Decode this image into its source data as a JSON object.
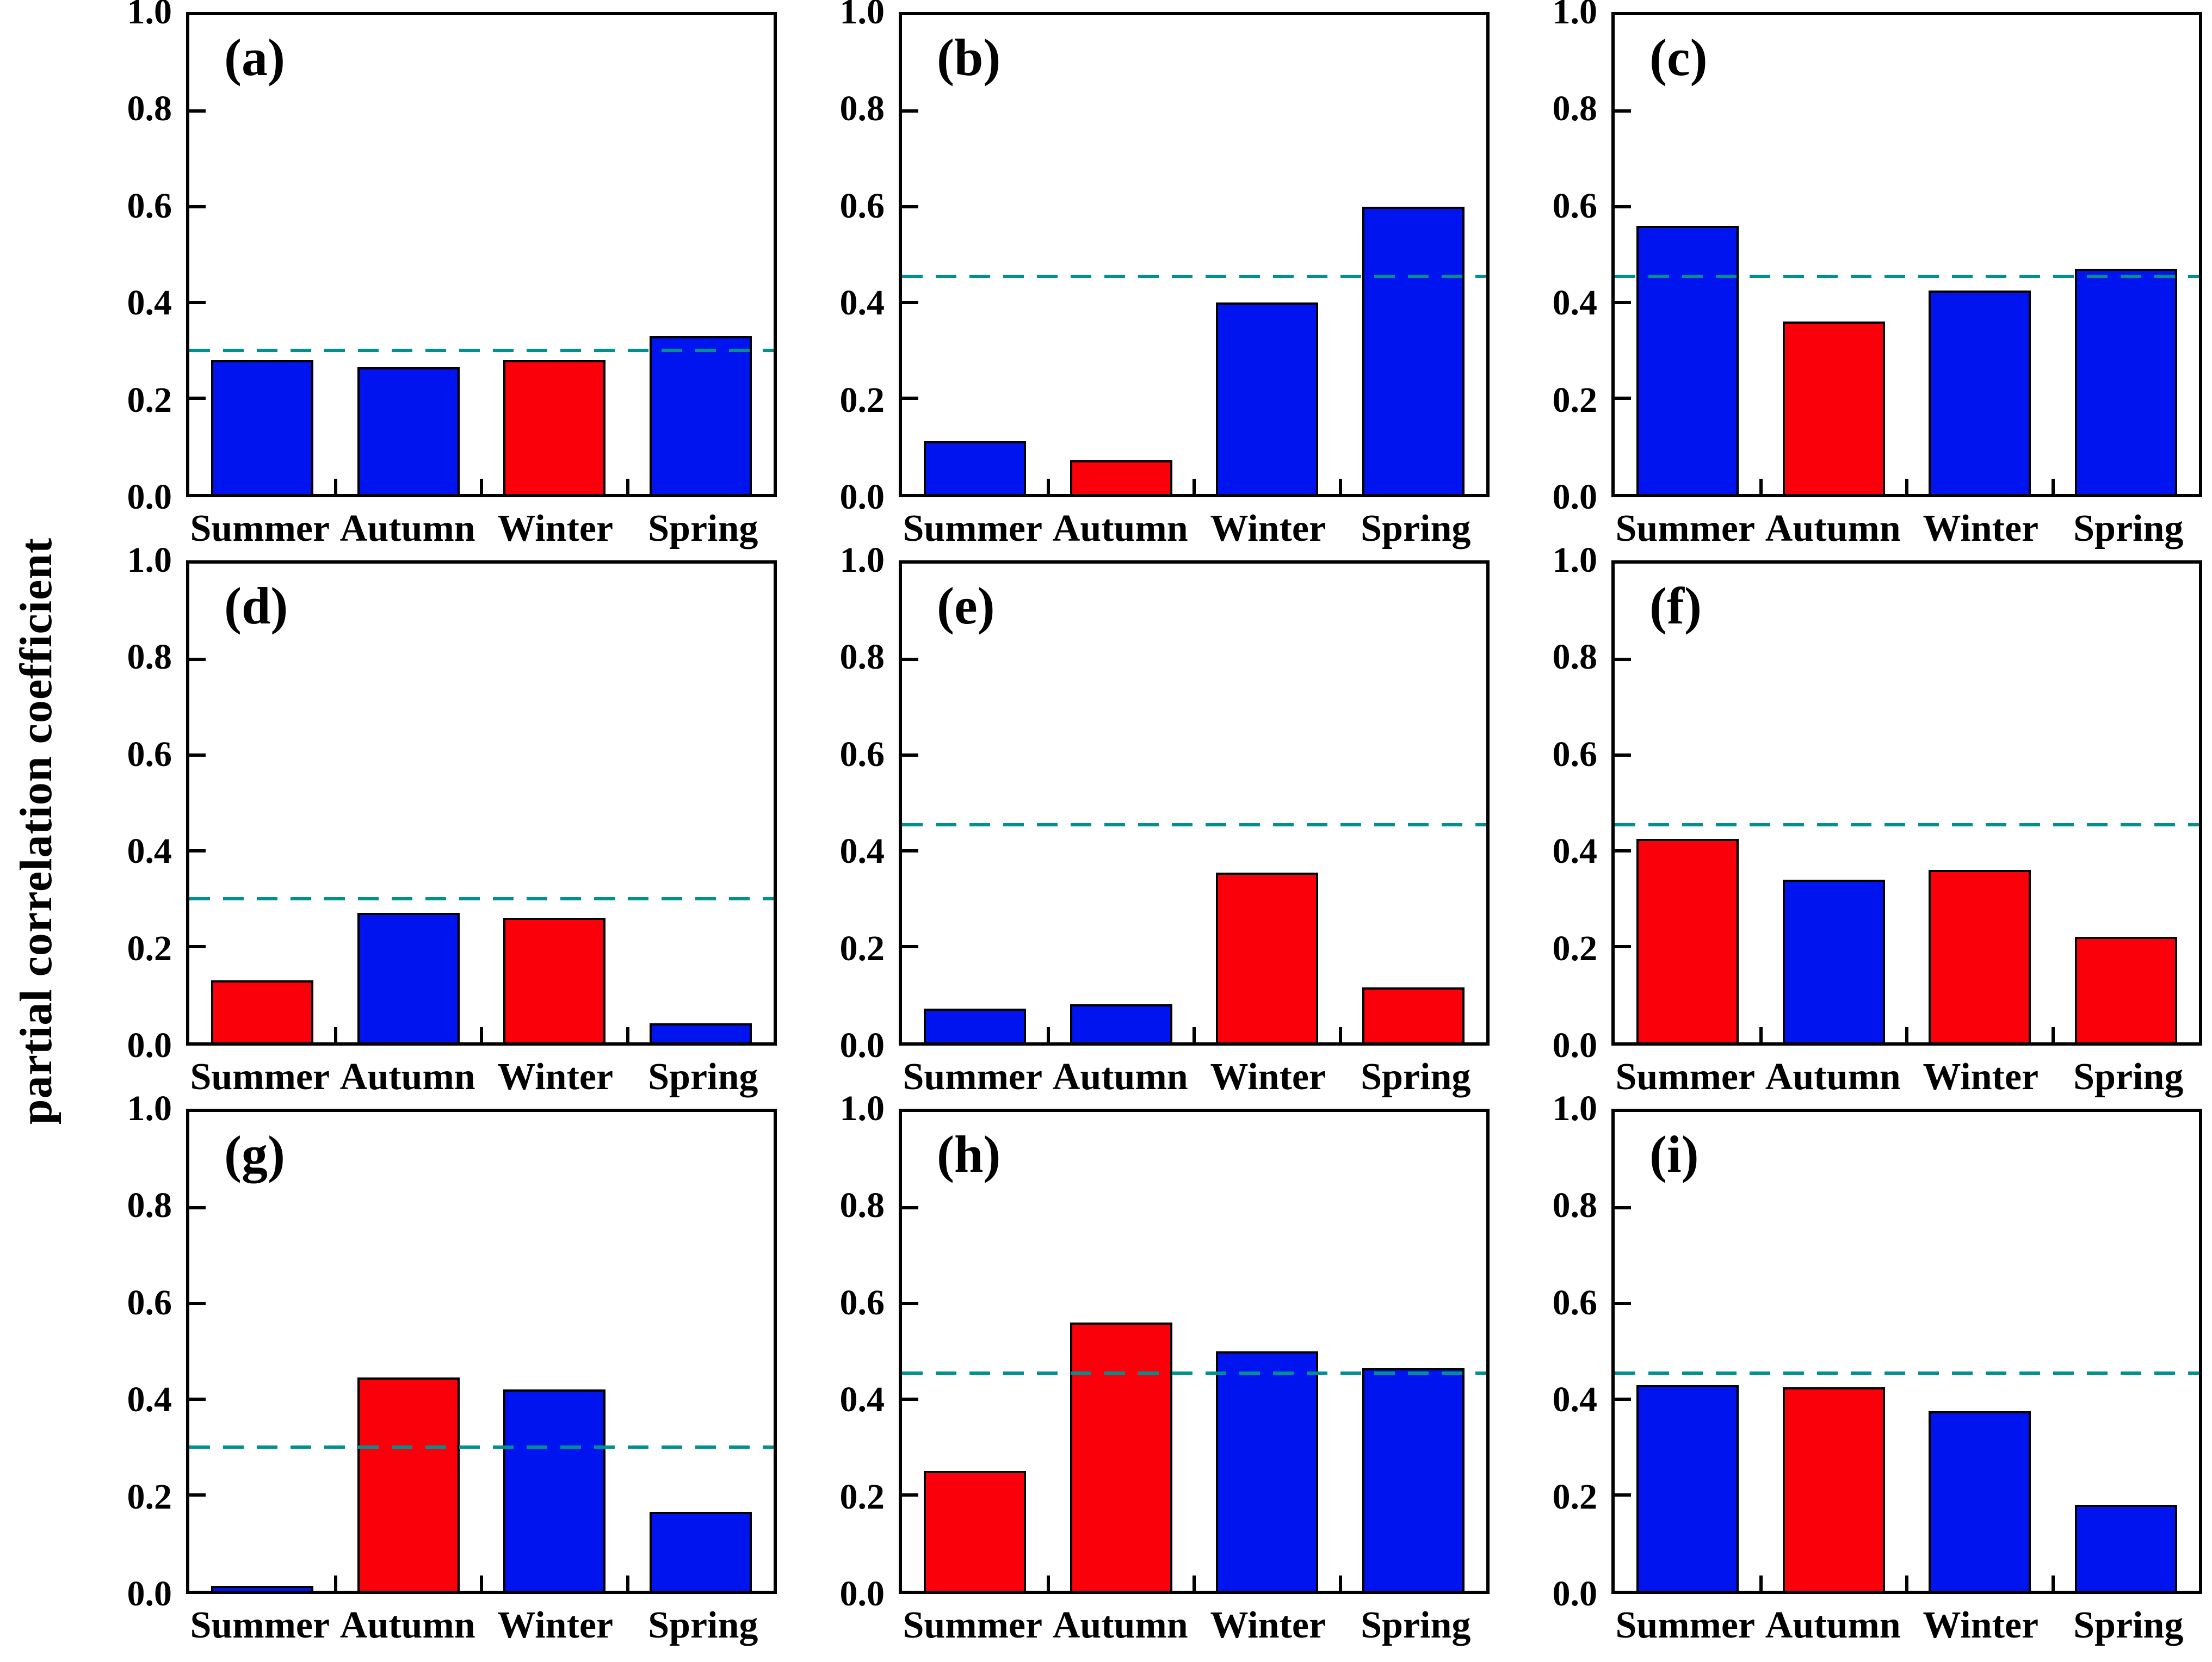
{
  "figure": {
    "ylabel": "partial correlation coefficient"
  },
  "axis": {
    "ylim": [
      0.0,
      1.0
    ],
    "ytick_values": [
      1.0,
      0.8,
      0.6,
      0.4,
      0.2,
      0.0
    ],
    "ytick_labels": [
      "1.0",
      "0.8",
      "0.6",
      "0.4",
      "0.2",
      "0.0"
    ],
    "categories": [
      "Summer",
      "Autumn",
      "Winter",
      "Spring"
    ]
  },
  "colors": {
    "blue": "#0014f0",
    "red": "#fa000a",
    "threshold_line": "#009090",
    "bar_edge": "#000000",
    "axis": "#000000"
  },
  "chart_data": [
    {
      "panel": "(a)",
      "type": "bar",
      "categories": [
        "Summer",
        "Autumn",
        "Winter",
        "Spring"
      ],
      "values": [
        0.28,
        0.265,
        0.28,
        0.33
      ],
      "bar_colors": [
        "blue",
        "blue",
        "red",
        "blue"
      ],
      "threshold": 0.3,
      "threshold_style": "dashed",
      "ylim": [
        0,
        1
      ]
    },
    {
      "panel": "(b)",
      "type": "bar",
      "categories": [
        "Summer",
        "Autumn",
        "Winter",
        "Spring"
      ],
      "values": [
        0.11,
        0.07,
        0.4,
        0.6
      ],
      "bar_colors": [
        "blue",
        "red",
        "blue",
        "blue"
      ],
      "threshold": 0.455,
      "threshold_style": "dashed",
      "ylim": [
        0,
        1
      ]
    },
    {
      "panel": "(c)",
      "type": "bar",
      "categories": [
        "Summer",
        "Autumn",
        "Winter",
        "Spring"
      ],
      "values": [
        0.56,
        0.36,
        0.425,
        0.47
      ],
      "bar_colors": [
        "blue",
        "red",
        "blue",
        "blue"
      ],
      "threshold": 0.455,
      "threshold_style": "dashed",
      "ylim": [
        0,
        1
      ]
    },
    {
      "panel": "(d)",
      "type": "bar",
      "categories": [
        "Summer",
        "Autumn",
        "Winter",
        "Spring"
      ],
      "values": [
        0.13,
        0.27,
        0.26,
        0.04
      ],
      "bar_colors": [
        "red",
        "blue",
        "red",
        "blue"
      ],
      "threshold": 0.3,
      "threshold_style": "dashed",
      "ylim": [
        0,
        1
      ]
    },
    {
      "panel": "(e)",
      "type": "bar",
      "categories": [
        "Summer",
        "Autumn",
        "Winter",
        "Spring"
      ],
      "values": [
        0.07,
        0.08,
        0.355,
        0.115
      ],
      "bar_colors": [
        "blue",
        "blue",
        "red",
        "red"
      ],
      "threshold": 0.455,
      "threshold_style": "dashed",
      "ylim": [
        0,
        1
      ]
    },
    {
      "panel": "(f)",
      "type": "bar",
      "categories": [
        "Summer",
        "Autumn",
        "Winter",
        "Spring"
      ],
      "values": [
        0.425,
        0.34,
        0.36,
        0.22
      ],
      "bar_colors": [
        "red",
        "blue",
        "red",
        "red"
      ],
      "threshold": 0.455,
      "threshold_style": "dashed",
      "ylim": [
        0,
        1
      ]
    },
    {
      "panel": "(g)",
      "type": "bar",
      "categories": [
        "Summer",
        "Autumn",
        "Winter",
        "Spring"
      ],
      "values": [
        0.01,
        0.445,
        0.42,
        0.165
      ],
      "bar_colors": [
        "blue",
        "red",
        "blue",
        "blue"
      ],
      "threshold": 0.3,
      "threshold_style": "dashed",
      "ylim": [
        0,
        1
      ]
    },
    {
      "panel": "(h)",
      "type": "bar",
      "categories": [
        "Summer",
        "Autumn",
        "Winter",
        "Spring"
      ],
      "values": [
        0.25,
        0.56,
        0.5,
        0.465
      ],
      "bar_colors": [
        "red",
        "red",
        "blue",
        "blue"
      ],
      "threshold": 0.455,
      "threshold_style": "dashed",
      "ylim": [
        0,
        1
      ]
    },
    {
      "panel": "(i)",
      "type": "bar",
      "categories": [
        "Summer",
        "Autumn",
        "Winter",
        "Spring"
      ],
      "values": [
        0.43,
        0.425,
        0.375,
        0.18
      ],
      "bar_colors": [
        "blue",
        "red",
        "blue",
        "blue"
      ],
      "threshold": 0.455,
      "threshold_style": "dashed",
      "ylim": [
        0,
        1
      ]
    }
  ]
}
